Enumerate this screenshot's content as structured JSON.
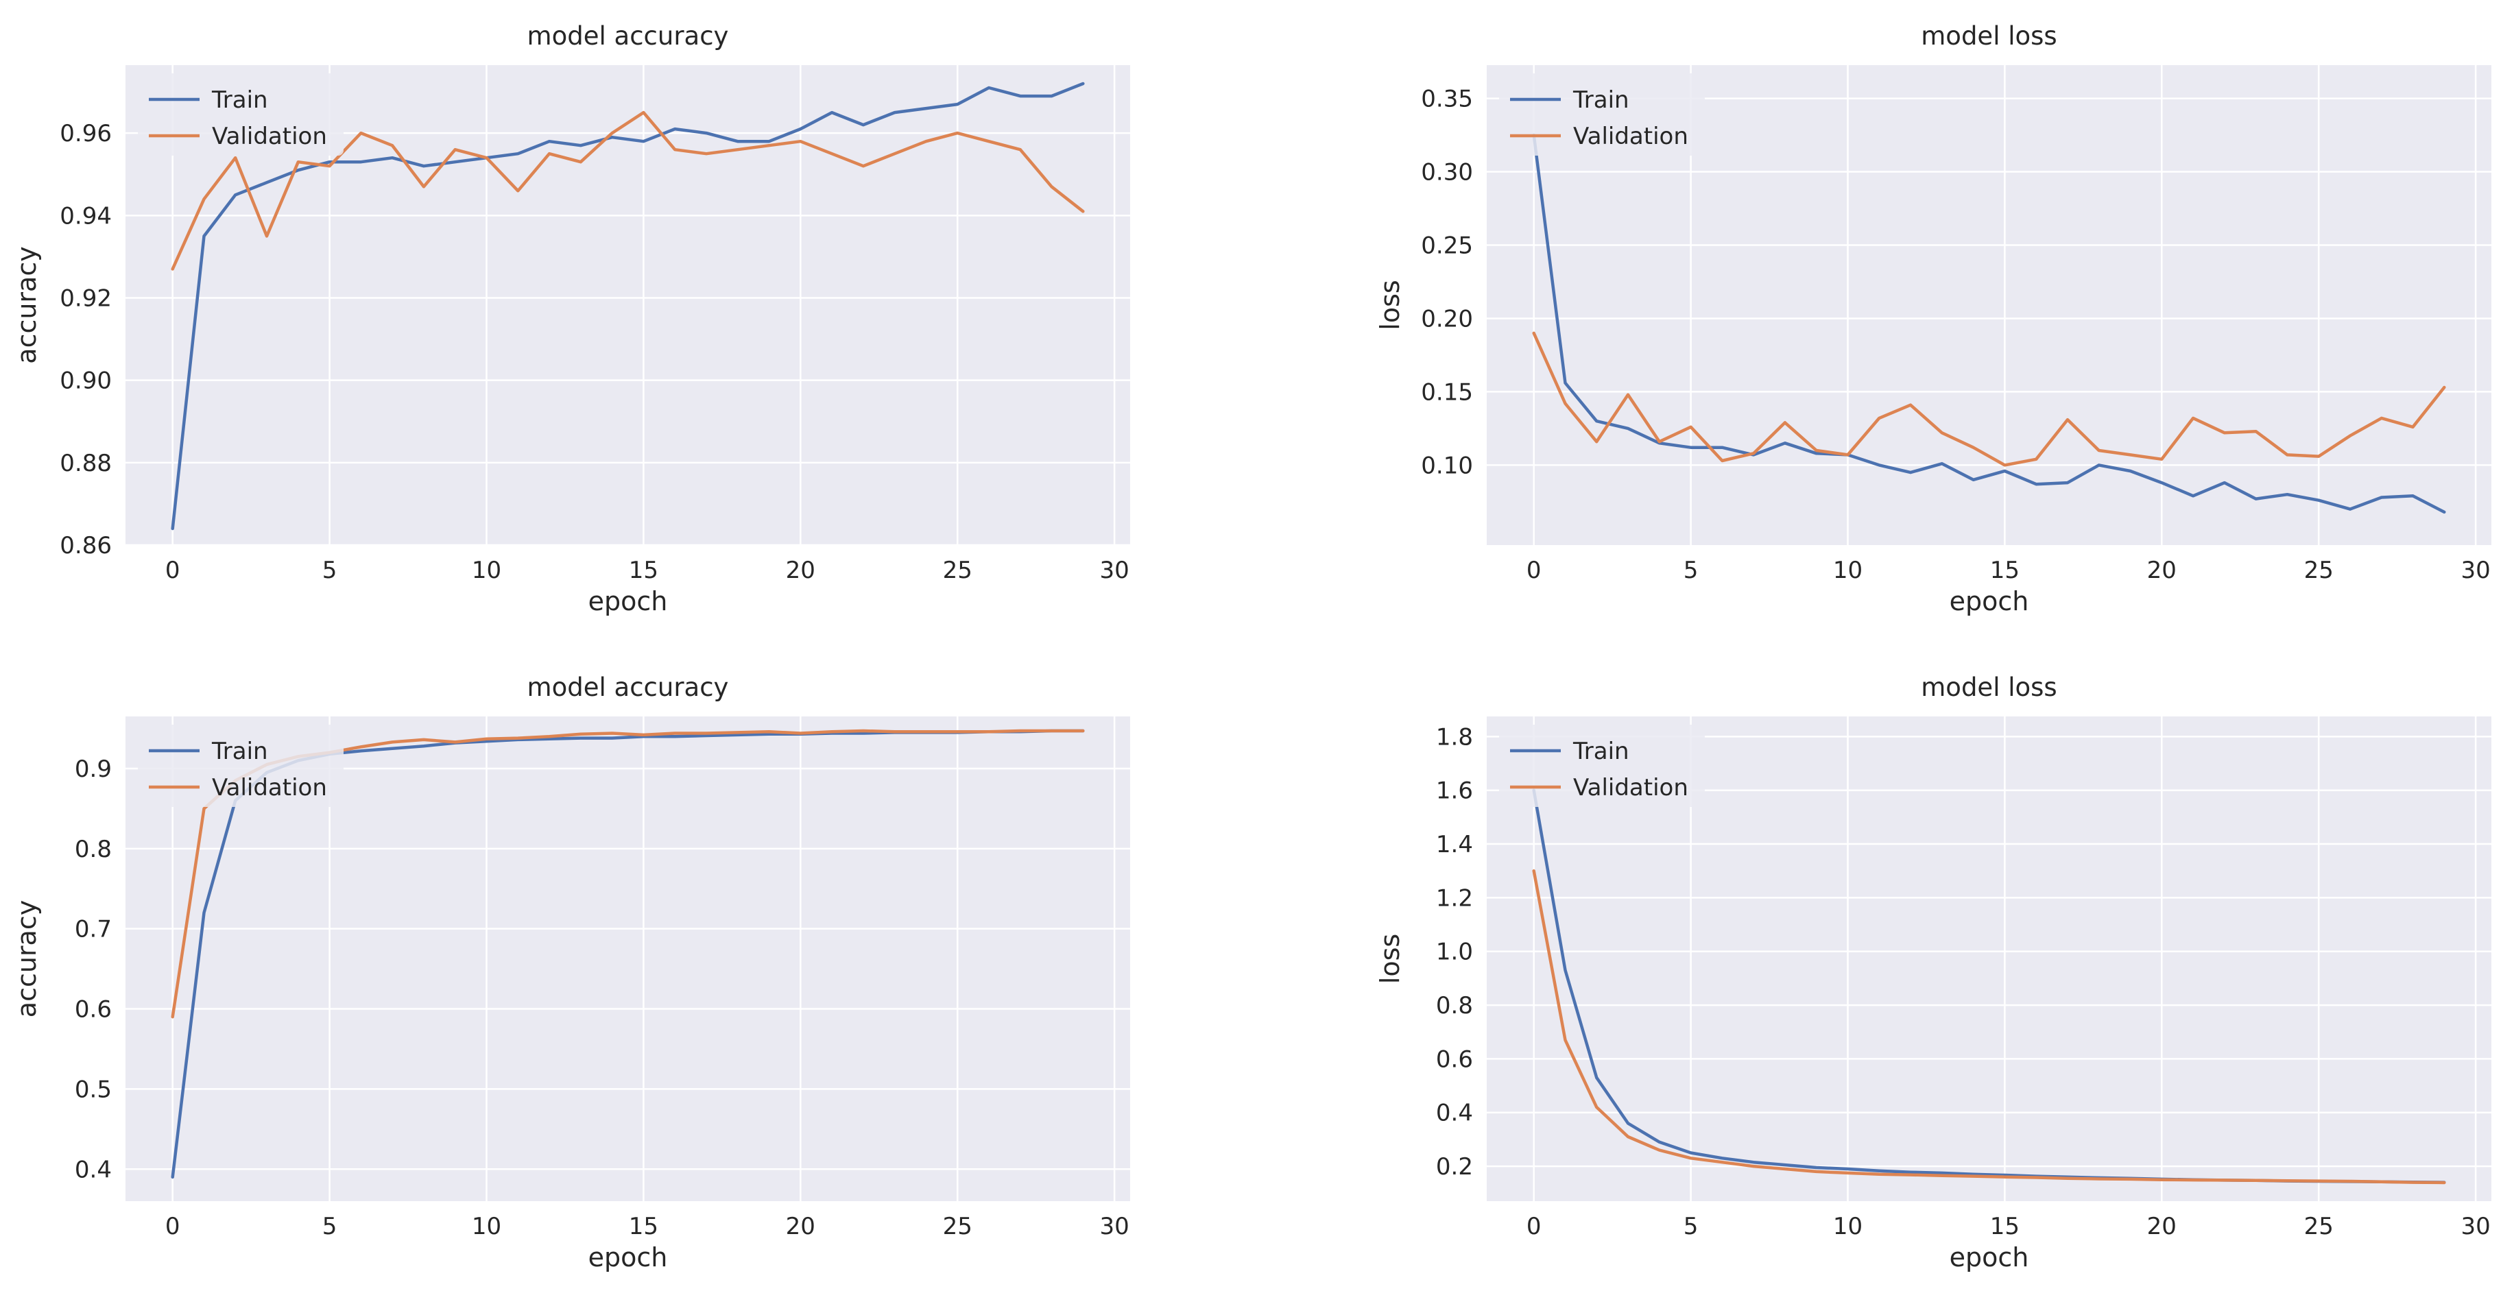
{
  "chart_data": [
    {
      "type": "line",
      "title": "model accuracy",
      "xlabel": "epoch",
      "ylabel": "accuracy",
      "xlim": [
        -1.5,
        30.5
      ],
      "ylim": [
        0.86,
        0.9765
      ],
      "xticks": [
        0,
        5,
        10,
        15,
        20,
        25,
        30
      ],
      "xtick_labels": [
        "0",
        "5",
        "10",
        "15",
        "20",
        "25",
        "30"
      ],
      "yticks": [
        0.86,
        0.88,
        0.9,
        0.92,
        0.94,
        0.96
      ],
      "ytick_labels": [
        "0.86",
        "0.88",
        "0.90",
        "0.92",
        "0.94",
        "0.96"
      ],
      "grid": true,
      "legend_position": "upper-left",
      "x": [
        0,
        1,
        2,
        3,
        4,
        5,
        6,
        7,
        8,
        9,
        10,
        11,
        12,
        13,
        14,
        15,
        16,
        17,
        18,
        19,
        20,
        21,
        22,
        23,
        24,
        25,
        26,
        27,
        28,
        29
      ],
      "series": [
        {
          "name": "Train",
          "color": "#4c72b0",
          "values": [
            0.864,
            0.935,
            0.945,
            0.948,
            0.951,
            0.953,
            0.953,
            0.954,
            0.952,
            0.953,
            0.954,
            0.955,
            0.958,
            0.957,
            0.959,
            0.958,
            0.961,
            0.96,
            0.958,
            0.958,
            0.961,
            0.965,
            0.962,
            0.965,
            0.966,
            0.967,
            0.971,
            0.969,
            0.969,
            0.972
          ]
        },
        {
          "name": "Validation",
          "color": "#dd8452",
          "values": [
            0.927,
            0.944,
            0.954,
            0.935,
            0.953,
            0.952,
            0.96,
            0.957,
            0.947,
            0.956,
            0.954,
            0.946,
            0.955,
            0.953,
            0.96,
            0.965,
            0.956,
            0.955,
            0.956,
            0.957,
            0.958,
            0.955,
            0.952,
            0.955,
            0.958,
            0.96,
            0.958,
            0.956,
            0.947,
            0.941
          ]
        }
      ]
    },
    {
      "type": "line",
      "title": "model loss",
      "xlabel": "epoch",
      "ylabel": "loss",
      "xlim": [
        -1.5,
        30.5
      ],
      "ylim": [
        0.0455,
        0.3727
      ],
      "xticks": [
        0,
        5,
        10,
        15,
        20,
        25,
        30
      ],
      "xtick_labels": [
        "0",
        "5",
        "10",
        "15",
        "20",
        "25",
        "30"
      ],
      "yticks": [
        0.1,
        0.15,
        0.2,
        0.25,
        0.3,
        0.35
      ],
      "ytick_labels": [
        "0.10",
        "0.15",
        "0.20",
        "0.25",
        "0.30",
        "0.35"
      ],
      "grid": true,
      "legend_position": "upper-left",
      "x": [
        0,
        1,
        2,
        3,
        4,
        5,
        6,
        7,
        8,
        9,
        10,
        11,
        12,
        13,
        14,
        15,
        16,
        17,
        18,
        19,
        20,
        21,
        22,
        23,
        24,
        25,
        26,
        27,
        28,
        29
      ],
      "series": [
        {
          "name": "Train",
          "color": "#4c72b0",
          "values": [
            0.325,
            0.156,
            0.13,
            0.125,
            0.115,
            0.112,
            0.112,
            0.107,
            0.115,
            0.108,
            0.107,
            0.1,
            0.095,
            0.101,
            0.09,
            0.096,
            0.087,
            0.088,
            0.1,
            0.096,
            0.088,
            0.079,
            0.088,
            0.077,
            0.08,
            0.076,
            0.07,
            0.078,
            0.079,
            0.068
          ]
        },
        {
          "name": "Validation",
          "color": "#dd8452",
          "values": [
            0.19,
            0.142,
            0.116,
            0.148,
            0.116,
            0.126,
            0.103,
            0.108,
            0.129,
            0.11,
            0.107,
            0.132,
            0.141,
            0.122,
            0.112,
            0.1,
            0.104,
            0.131,
            0.11,
            0.107,
            0.104,
            0.132,
            0.122,
            0.123,
            0.107,
            0.106,
            0.12,
            0.132,
            0.126,
            0.153
          ]
        }
      ]
    },
    {
      "type": "line",
      "title": "model accuracy",
      "xlabel": "epoch",
      "ylabel": "accuracy",
      "xlim": [
        -1.5,
        30.5
      ],
      "ylim": [
        0.36,
        0.965
      ],
      "xticks": [
        0,
        5,
        10,
        15,
        20,
        25,
        30
      ],
      "xtick_labels": [
        "0",
        "5",
        "10",
        "15",
        "20",
        "25",
        "30"
      ],
      "yticks": [
        0.4,
        0.5,
        0.6,
        0.7,
        0.8,
        0.9
      ],
      "ytick_labels": [
        "0.4",
        "0.5",
        "0.6",
        "0.7",
        "0.8",
        "0.9"
      ],
      "grid": true,
      "legend_position": "upper-left",
      "x": [
        0,
        1,
        2,
        3,
        4,
        5,
        6,
        7,
        8,
        9,
        10,
        11,
        12,
        13,
        14,
        15,
        16,
        17,
        18,
        19,
        20,
        21,
        22,
        23,
        24,
        25,
        26,
        27,
        28,
        29
      ],
      "series": [
        {
          "name": "Train",
          "color": "#4c72b0",
          "values": [
            0.39,
            0.72,
            0.86,
            0.895,
            0.91,
            0.918,
            0.922,
            0.925,
            0.928,
            0.932,
            0.934,
            0.936,
            0.937,
            0.938,
            0.938,
            0.94,
            0.94,
            0.941,
            0.942,
            0.943,
            0.943,
            0.944,
            0.944,
            0.945,
            0.945,
            0.945,
            0.946,
            0.946,
            0.947,
            0.947
          ]
        },
        {
          "name": "Validation",
          "color": "#dd8452",
          "values": [
            0.59,
            0.85,
            0.885,
            0.905,
            0.915,
            0.92,
            0.927,
            0.933,
            0.936,
            0.933,
            0.937,
            0.938,
            0.94,
            0.943,
            0.944,
            0.942,
            0.944,
            0.944,
            0.945,
            0.946,
            0.944,
            0.946,
            0.947,
            0.946,
            0.946,
            0.946,
            0.946,
            0.947,
            0.947,
            0.947
          ]
        }
      ]
    },
    {
      "type": "line",
      "title": "model loss",
      "xlabel": "epoch",
      "ylabel": "loss",
      "xlim": [
        -1.5,
        30.5
      ],
      "ylim": [
        0.07,
        1.875
      ],
      "xticks": [
        0,
        5,
        10,
        15,
        20,
        25,
        30
      ],
      "xtick_labels": [
        "0",
        "5",
        "10",
        "15",
        "20",
        "25",
        "30"
      ],
      "yticks": [
        0.2,
        0.4,
        0.6,
        0.8,
        1.0,
        1.2,
        1.4,
        1.6,
        1.8
      ],
      "ytick_labels": [
        "0.2",
        "0.4",
        "0.6",
        "0.8",
        "1.0",
        "1.2",
        "1.4",
        "1.6",
        "1.8"
      ],
      "grid": true,
      "legend_position": "upper-left",
      "x": [
        0,
        1,
        2,
        3,
        4,
        5,
        6,
        7,
        8,
        9,
        10,
        11,
        12,
        13,
        14,
        15,
        16,
        17,
        18,
        19,
        20,
        21,
        22,
        23,
        24,
        25,
        26,
        27,
        28,
        29
      ],
      "series": [
        {
          "name": "Train",
          "color": "#4c72b0",
          "values": [
            1.6,
            0.93,
            0.53,
            0.36,
            0.29,
            0.25,
            0.23,
            0.215,
            0.205,
            0.195,
            0.19,
            0.183,
            0.178,
            0.175,
            0.17,
            0.167,
            0.163,
            0.16,
            0.157,
            0.155,
            0.152,
            0.15,
            0.148,
            0.147,
            0.145,
            0.144,
            0.143,
            0.142,
            0.141,
            0.14
          ]
        },
        {
          "name": "Validation",
          "color": "#dd8452",
          "values": [
            1.3,
            0.67,
            0.42,
            0.31,
            0.26,
            0.23,
            0.215,
            0.2,
            0.19,
            0.18,
            0.175,
            0.17,
            0.168,
            0.165,
            0.163,
            0.16,
            0.158,
            0.155,
            0.153,
            0.152,
            0.15,
            0.149,
            0.148,
            0.147,
            0.146,
            0.145,
            0.144,
            0.142,
            0.14,
            0.139
          ]
        }
      ]
    }
  ]
}
